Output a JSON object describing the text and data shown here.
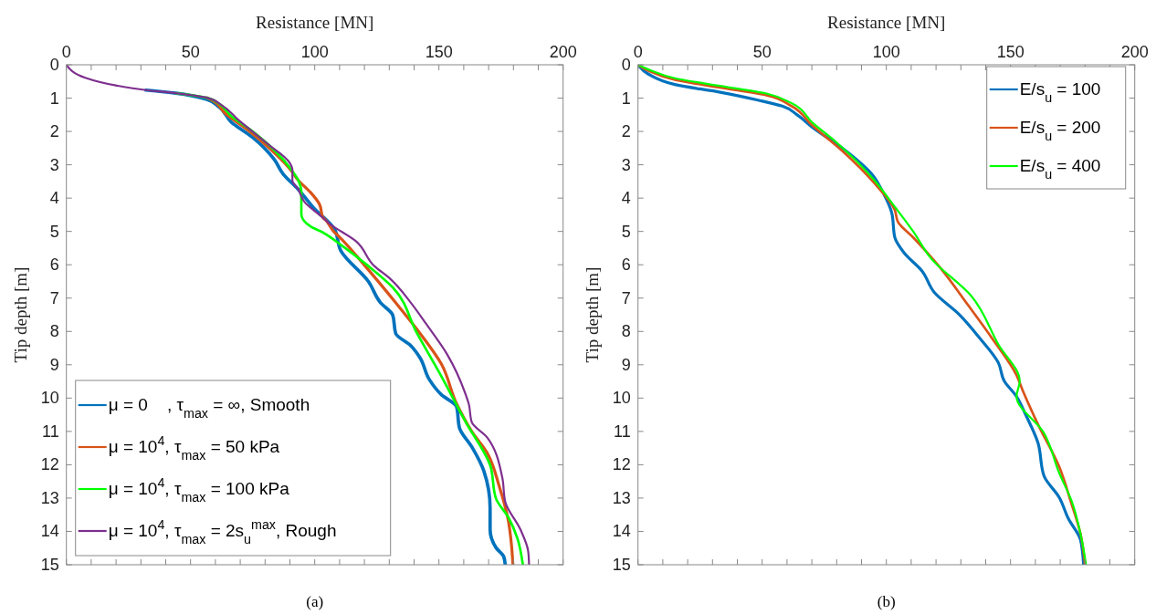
{
  "chart_data": [
    {
      "type": "line",
      "xlabel": "Resistance [MN]",
      "ylabel": "Tip depth [m]",
      "xlim": [
        0,
        200
      ],
      "ylim": [
        15,
        0
      ],
      "xticks": [
        0,
        {
          "value": 10,
          "label": null
        },
        {
          "value": 20,
          "label": null
        },
        {
          "value": 30,
          "label": null
        },
        {
          "value": 40,
          "label": null
        },
        50,
        {
          "value": 60,
          "label": null
        },
        {
          "value": 70,
          "label": null
        },
        {
          "value": 80,
          "label": null
        },
        {
          "value": 90,
          "label": null
        },
        100,
        {
          "value": 110,
          "label": null
        },
        {
          "value": 120,
          "label": null
        },
        {
          "value": 130,
          "label": null
        },
        {
          "value": 140,
          "label": null
        },
        150,
        {
          "value": 160,
          "label": null
        },
        {
          "value": 170,
          "label": null
        },
        {
          "value": 180,
          "label": null
        },
        {
          "value": 190,
          "label": null
        },
        200
      ],
      "yticks": [
        0,
        1,
        2,
        3,
        4,
        5,
        6,
        7,
        8,
        9,
        10,
        11,
        12,
        13,
        14,
        15
      ],
      "grid": false,
      "legend": "bottom left",
      "annotations": [
        "(a)"
      ],
      "series": [
        {
          "name": "μ = 0    , τ$_{max}$ = ∞, Smooth",
          "color": "#0072bd",
          "x": [
            null,
            null,
            null,
            32,
            44,
            56.6,
            61.5,
            66.4,
            75,
            83.6,
            87.3,
            93.4,
            99.5,
            108,
            110.5,
            121.6,
            126.5,
            131.4,
            132.6,
            138.7,
            142.4,
            146.1,
            151,
            157.1,
            158.3,
            163.2,
            168.1,
            170.6,
            170.6,
            173,
            176.1,
            176.7
          ],
          "values": [
            null,
            null,
            null,
            0.76,
            0.85,
            1.04,
            1.27,
            1.72,
            2.18,
            2.83,
            3.28,
            3.74,
            4.29,
            4.94,
            5.58,
            6.5,
            7.14,
            7.51,
            8.06,
            8.43,
            8.79,
            9.44,
            9.9,
            10.26,
            10.9,
            11.46,
            12.19,
            13.29,
            13.94,
            14.49,
            14.76,
            15
          ]
        },
        {
          "name": "μ = 10$^{4}$, τ$_{max}$ = 50 kPa",
          "color": "#d95319",
          "x": [
            null,
            null,
            null,
            null,
            null,
            56.6,
            59,
            63.9,
            73.8,
            82.4,
            89.7,
            93.4,
            98.3,
            102,
            103.2,
            104.4,
            108,
            109.3,
            120.3,
            132.6,
            142.4,
            151,
            157.1,
            163.2,
            169.4,
            174.3,
            177.9,
            179.2,
            179.8
          ],
          "values": [
            null,
            null,
            null,
            null,
            null,
            0.99,
            1.08,
            1.45,
            2,
            2.55,
            3.1,
            3.47,
            3.83,
            4.2,
            4.57,
            4.66,
            5.03,
            5.12,
            6.04,
            7.14,
            8.06,
            8.98,
            10.17,
            11,
            11.64,
            12.65,
            13.66,
            14.4,
            15
          ]
        },
        {
          "name": "μ = 10$^{4}$, τ$_{max}$ = 100 kPa",
          "color": "#00ff00",
          "x": [
            null,
            null,
            null,
            null,
            44,
            56.6,
            61.5,
            66.4,
            75,
            83.6,
            91,
            93.4,
            94.6,
            94.6,
            94.6,
            98.3,
            103.2,
            110.5,
            121.6,
            131.4,
            141.2,
            151,
            160.8,
            170.6,
            173,
            177.9,
            181.6,
            183.8
          ],
          "values": [
            null,
            null,
            null,
            null,
            0.85,
            0.99,
            1.17,
            1.54,
            2,
            2.55,
            3.19,
            3.47,
            3.83,
            4.2,
            4.48,
            4.85,
            5.03,
            5.4,
            6.04,
            6.68,
            8.06,
            9.35,
            10.72,
            12.01,
            13.02,
            13.57,
            14.21,
            15
          ]
        },
        {
          "name": "μ = 10$^{4}$, τ$_{max}$ = 2s$_{u}$$^{max}$, Rough",
          "color": "#7e2f8e",
          "x": [
            0,
            7.6,
            19.9,
            32,
            44,
            56.6,
            62.7,
            68.9,
            81,
            89.7,
            91,
            91,
            93.4,
            95.8,
            103,
            105.6,
            116.7,
            124,
            130.2,
            138.7,
            144.9,
            153.4,
            160.8,
            162,
            163.2,
            169.4,
            175.5,
            176.7,
            182.8,
            185.9,
            186.3
          ],
          "values": [
            0,
            0.39,
            0.62,
            0.76,
            0.85,
            0.99,
            1.22,
            1.63,
            2.37,
            2.92,
            3.15,
            3.47,
            3.74,
            4.11,
            4.57,
            4.75,
            5.3,
            6.04,
            6.41,
            7.14,
            7.78,
            8.7,
            9.9,
            10.17,
            10.72,
            11.18,
            12.38,
            13.11,
            13.94,
            14.58,
            15
          ]
        }
      ]
    },
    {
      "type": "line",
      "xlabel": "Resistance [MN]",
      "ylabel": "Tip depth [m]",
      "xlim": [
        0,
        200
      ],
      "ylim": [
        15,
        0
      ],
      "xticks": [
        0,
        {
          "value": 10,
          "label": null
        },
        {
          "value": 20,
          "label": null
        },
        {
          "value": 30,
          "label": null
        },
        {
          "value": 40,
          "label": null
        },
        50,
        {
          "value": 60,
          "label": null
        },
        {
          "value": 70,
          "label": null
        },
        {
          "value": 80,
          "label": null
        },
        {
          "value": 90,
          "label": null
        },
        100,
        {
          "value": 110,
          "label": null
        },
        {
          "value": 120,
          "label": null
        },
        {
          "value": 130,
          "label": null
        },
        {
          "value": 140,
          "label": null
        },
        150,
        {
          "value": 160,
          "label": null
        },
        {
          "value": 170,
          "label": null
        },
        {
          "value": 180,
          "label": null
        },
        {
          "value": 190,
          "label": null
        },
        200
      ],
      "yticks": [
        0,
        1,
        2,
        3,
        4,
        5,
        6,
        7,
        8,
        9,
        10,
        11,
        12,
        13,
        14,
        15
      ],
      "grid": false,
      "legend": "top right",
      "annotations": [
        "(b)"
      ],
      "series": [
        {
          "name": "E/s$_{u}$ = 100",
          "color": "#0072bd",
          "x": [
            0,
            4.2,
            15.2,
            33.6,
            48.3,
            58.1,
            64.2,
            70.3,
            82.6,
            94.9,
            98.5,
            102.2,
            103.4,
            107.1,
            114.4,
            119.3,
            129.2,
            137.7,
            145.1,
            147.5,
            152.4,
            156.1,
            161,
            163.5,
            169.6,
            173.3,
            178.2,
            179.4
          ],
          "values": [
            0,
            0.28,
            0.6,
            0.83,
            1.06,
            1.24,
            1.51,
            1.88,
            2.52,
            3.35,
            3.81,
            4.45,
            5.18,
            5.64,
            6.19,
            6.83,
            7.48,
            8.21,
            8.94,
            9.49,
            9.95,
            10.5,
            11.33,
            12.34,
            12.98,
            13.62,
            14.26,
            15
          ]
        },
        {
          "name": "E/s$_{u}$ = 200",
          "color": "#d95319",
          "x": [
            0,
            4.2,
            15.2,
            33.6,
            52,
            61.8,
            70.3,
            82.6,
            94.9,
            103.4,
            104.7,
            110.8,
            121.8,
            132.8,
            142.6,
            152.4,
            154.9,
            161,
            169.6,
            174.5,
            178.2,
            180
          ],
          "values": [
            0,
            0.18,
            0.46,
            0.69,
            0.92,
            1.24,
            1.83,
            2.61,
            3.53,
            4.36,
            4.72,
            5.18,
            6.1,
            7.2,
            8.21,
            9.31,
            9.77,
            10.78,
            12.06,
            13.16,
            14.08,
            15
          ]
        },
        {
          "name": "E/s$_{u}$ = 400",
          "color": "#00ff00",
          "x": [
            0,
            4.2,
            15.2,
            33.6,
            52,
            61.8,
            70.3,
            80.1,
            94.9,
            103.4,
            110.8,
            118.1,
            134,
            145.1,
            153.7,
            152.4,
            163.5,
            169.6,
            174.5,
            178.2,
            180.4
          ],
          "values": [
            0,
            0.14,
            0.41,
            0.64,
            0.87,
            1.15,
            1.74,
            2.34,
            3.44,
            4.26,
            5,
            5.82,
            6.92,
            8.39,
            9.49,
            9.95,
            11.05,
            12.25,
            13.07,
            14.08,
            15
          ]
        }
      ]
    }
  ]
}
